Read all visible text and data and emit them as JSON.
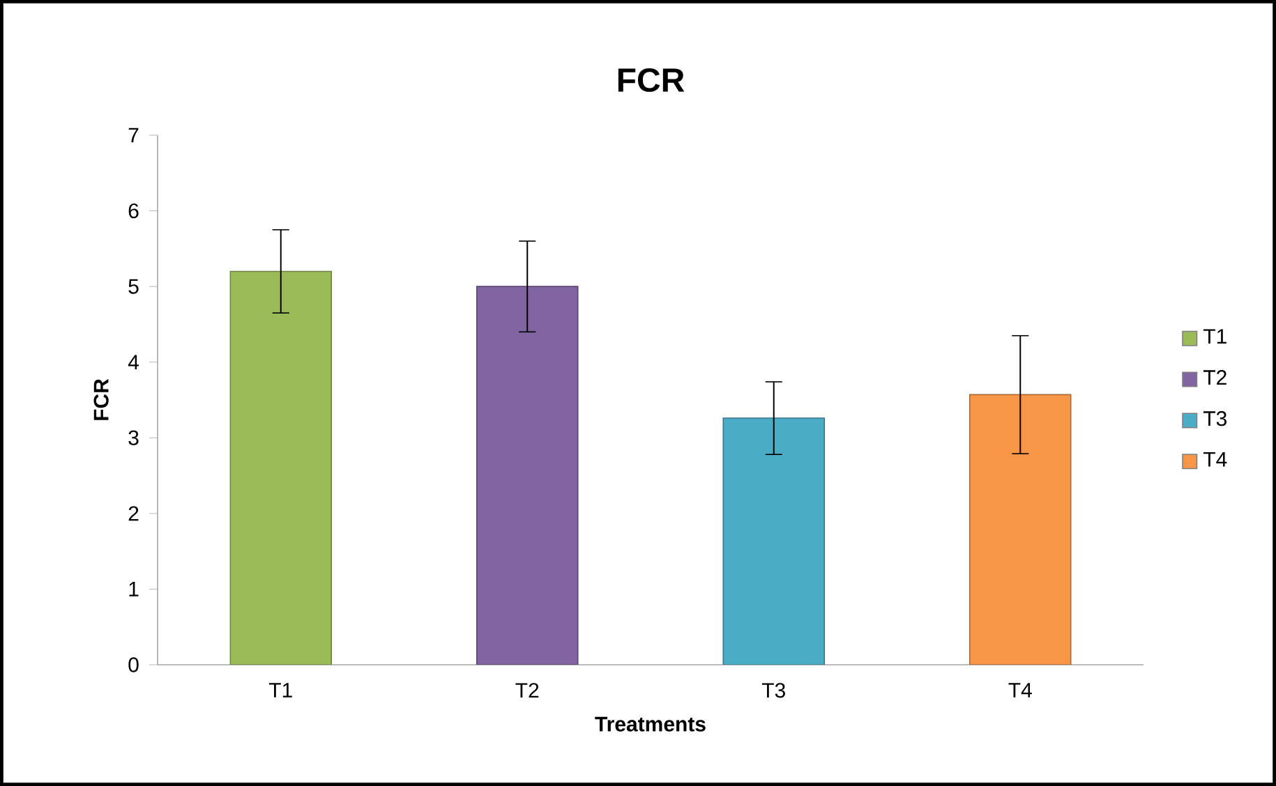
{
  "chart_data": {
    "type": "bar",
    "title": "FCR",
    "xlabel": "Treatments",
    "ylabel": "FCR",
    "categories": [
      "T1",
      "T2",
      "T3",
      "T4"
    ],
    "series": [
      {
        "name": "T1",
        "color": "#9bbb59",
        "values": [
          5.2,
          null,
          null,
          null
        ],
        "errors": [
          0.55,
          null,
          null,
          null
        ]
      },
      {
        "name": "T2",
        "color": "#8064a2",
        "values": [
          null,
          5.0,
          null,
          null
        ],
        "errors": [
          null,
          0.6,
          null,
          null
        ]
      },
      {
        "name": "T3",
        "color": "#4bacc6",
        "values": [
          null,
          null,
          3.26,
          null
        ],
        "errors": [
          null,
          null,
          0.48,
          null
        ]
      },
      {
        "name": "T4",
        "color": "#f79646",
        "values": [
          null,
          null,
          null,
          3.57
        ],
        "errors": [
          null,
          null,
          null,
          0.78
        ]
      }
    ],
    "ylim": [
      0,
      7
    ],
    "yticks": [
      0,
      1,
      2,
      3,
      4,
      5,
      6,
      7
    ],
    "grid": false,
    "legend": "right"
  }
}
